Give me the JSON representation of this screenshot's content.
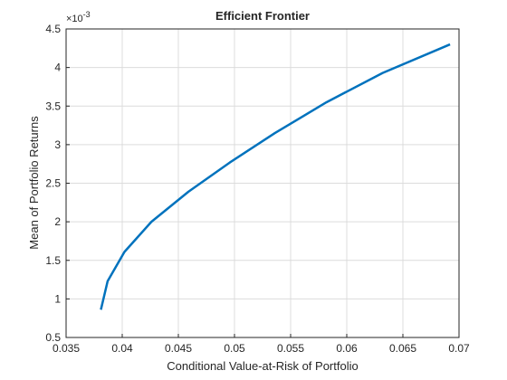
{
  "chart_data": {
    "type": "line",
    "title": "Efficient  Frontier",
    "xlabel": "Conditional Value-at-Risk of Portfolio",
    "ylabel": "Mean of Portfolio Returns",
    "y_multiplier": "×10",
    "y_exponent": "-3",
    "x": [
      0.0381,
      0.0387,
      0.0402,
      0.0426,
      0.0459,
      0.0496,
      0.0536,
      0.0582,
      0.0632,
      0.0692
    ],
    "series": [
      {
        "color": "#0072bd",
        "values": [
          0.86,
          1.23,
          1.61,
          2.0,
          2.39,
          2.77,
          3.15,
          3.55,
          3.93,
          4.3
        ]
      }
    ],
    "xlim": [
      0.035,
      0.07
    ],
    "xticks": [
      0.035,
      0.04,
      0.045,
      0.05,
      0.055,
      0.06,
      0.065,
      0.07
    ],
    "ylim": [
      0.5,
      4.5
    ],
    "yticks": [
      0.5,
      1,
      1.5,
      2,
      2.5,
      3,
      3.5,
      4,
      4.5
    ],
    "grid": true
  }
}
